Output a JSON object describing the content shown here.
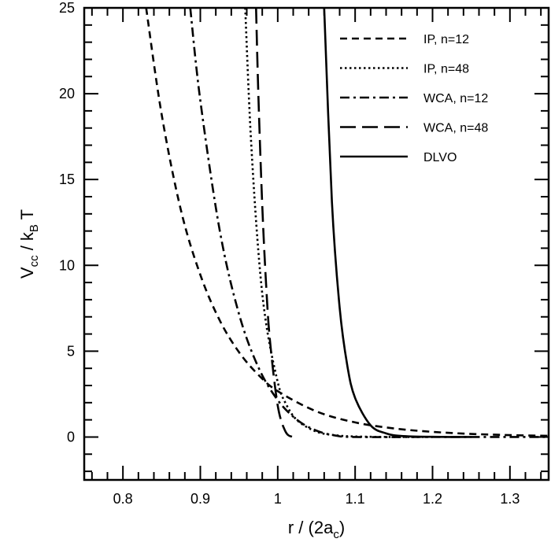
{
  "chart_data": {
    "type": "line",
    "title": "",
    "xlabel": "r / (2a",
    "xlabel_sub": "c",
    "xlabel_end": ")",
    "ylabel": "V",
    "ylabel_sub1": "cc",
    "ylabel_mid": " / k",
    "ylabel_sub2": "B",
    "ylabel_end": " T",
    "xlim": [
      0.75,
      1.35
    ],
    "ylim": [
      -2.5,
      25
    ],
    "xticks": [
      0.8,
      0.9,
      1,
      1.1,
      1.2,
      1.3
    ],
    "xtick_labels": [
      "0.8",
      "0.9",
      "1",
      "1.1",
      "1.2",
      "1.3"
    ],
    "yticks": [
      0,
      5,
      10,
      15,
      20,
      25
    ],
    "ytick_labels": [
      "0",
      "5",
      "10",
      "15",
      "20",
      "25"
    ],
    "grid": false,
    "legend_placement": "top-right",
    "series": [
      {
        "name": "IP, n=12",
        "style": "dashed",
        "color": "#000000",
        "x": [
          0.83,
          0.85,
          0.875,
          0.9,
          0.925,
          0.95,
          0.975,
          1.0,
          1.05,
          1.1,
          1.15,
          1.2,
          1.25,
          1.3,
          1.35
        ],
        "y": [
          25.0,
          18.8,
          13.2,
          9.45,
          6.8,
          4.94,
          3.62,
          2.67,
          1.49,
          0.85,
          0.5,
          0.3,
          0.18,
          0.11,
          0.07
        ]
      },
      {
        "name": "IP, n=48",
        "style": "dotted",
        "color": "#000000",
        "x": [
          0.958,
          0.965,
          0.975,
          0.985,
          1.0,
          1.01,
          1.025,
          1.05,
          1.075,
          1.1,
          1.15,
          1.2
        ],
        "y": [
          25.0,
          17.7,
          10.8,
          6.61,
          3.2,
          1.98,
          0.98,
          0.31,
          0.1,
          0.03,
          0.0,
          0.0
        ]
      },
      {
        "name": "WCA, n=12",
        "style": "dash-dot",
        "color": "#000000",
        "x": [
          0.887,
          0.9,
          0.925,
          0.95,
          0.975,
          1.0,
          1.025,
          1.05,
          1.075,
          1.1,
          1.2,
          1.3,
          1.35
        ],
        "y": [
          25.0,
          19.6,
          12.05,
          7.16,
          4.06,
          2.15,
          1.0,
          0.37,
          0.08,
          0.0,
          0.0,
          0.0,
          0.0
        ]
      },
      {
        "name": "WCA, n=48",
        "style": "long-dashed",
        "color": "#000000",
        "x": [
          0.972,
          0.975,
          0.98,
          0.985,
          0.99,
          1.0,
          1.01,
          1.019
        ],
        "y": [
          25.0,
          19.9,
          13.5,
          8.87,
          5.6,
          1.83,
          0.32,
          0.0
        ]
      },
      {
        "name": "DLVO",
        "style": "solid",
        "color": "#000000",
        "x": [
          1.06,
          1.07,
          1.08,
          1.09,
          1.1,
          1.12,
          1.14,
          1.16,
          1.2,
          1.25
        ],
        "y": [
          25.0,
          13.7,
          7.53,
          4.13,
          2.27,
          0.68,
          0.21,
          0.06,
          0.01,
          0.0
        ]
      }
    ]
  }
}
